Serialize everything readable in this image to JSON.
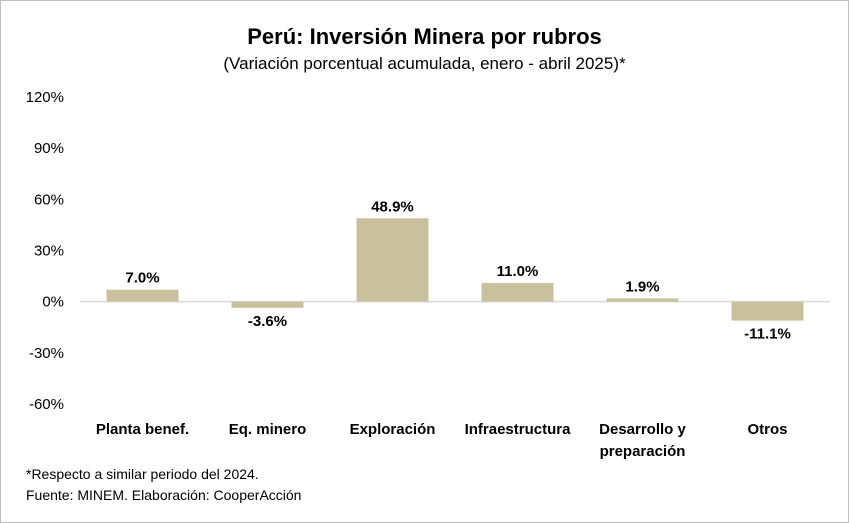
{
  "chart_data": {
    "type": "bar",
    "title": "Perú: Inversión Minera por rubros",
    "subtitle": "(Variación porcentual acumulada, enero - abril 2025)*",
    "categories": [
      [
        "Planta benef."
      ],
      [
        "Eq. minero"
      ],
      [
        "Exploración"
      ],
      [
        "Infraestructura"
      ],
      [
        "Desarrollo y",
        "preparación"
      ],
      [
        "Otros"
      ]
    ],
    "values": [
      7.0,
      -3.6,
      48.9,
      11.0,
      1.9,
      -11.1
    ],
    "data_labels": [
      "7.0%",
      "-3.6%",
      "48.9%",
      "11.0%",
      "1.9%",
      "-11.1%"
    ],
    "yticks": [
      120,
      90,
      60,
      30,
      0,
      -30,
      -60
    ],
    "ytick_labels": [
      "120%",
      "90%",
      "60%",
      "30%",
      "0%",
      "-30%",
      "-60%"
    ],
    "ylim": [
      -60,
      120
    ],
    "xlabel": "",
    "ylabel": "",
    "grid": false,
    "colors": {
      "bar": "#c9c09d",
      "axis": "#d9d9d9",
      "text": "#000000"
    }
  },
  "notes": {
    "footnote": "*Respecto a similar periodo del 2024.",
    "source": "Fuente: MINEM. Elaboración: CooperAcción"
  }
}
